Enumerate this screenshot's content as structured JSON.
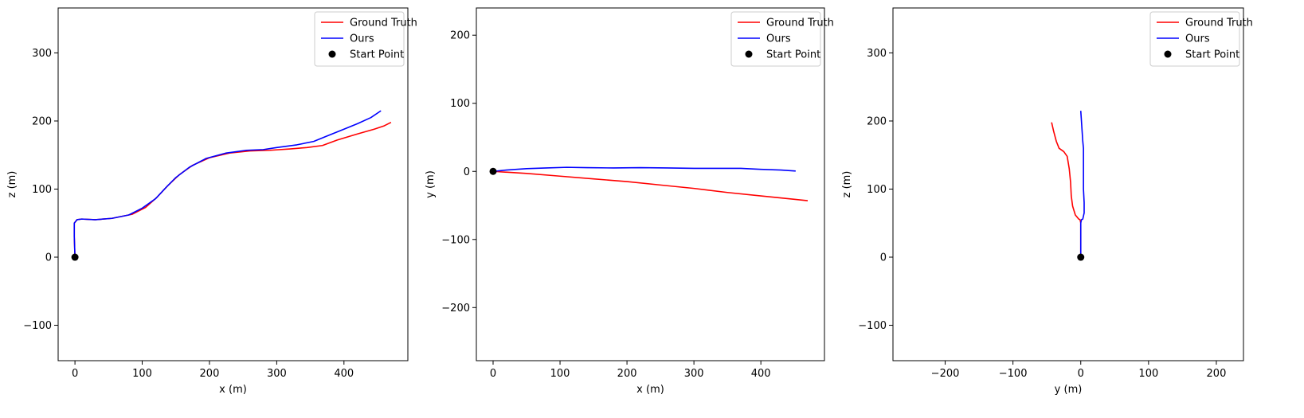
{
  "chart_data": [
    {
      "type": "line",
      "title": "",
      "xlabel": "x (m)",
      "ylabel": "z (m)",
      "xlim": [
        -25,
        495
      ],
      "ylim": [
        -152,
        366
      ],
      "xticks": [
        0,
        100,
        200,
        300,
        400
      ],
      "yticks": [
        -100,
        0,
        100,
        200,
        300
      ],
      "grid": false,
      "legend_position": "top-right",
      "series": [
        {
          "name": "Ground Truth",
          "color": "#ff0000",
          "points": [
            [
              0,
              0
            ],
            [
              -1,
              30
            ],
            [
              -1,
              50
            ],
            [
              3,
              55
            ],
            [
              10,
              56
            ],
            [
              30,
              55
            ],
            [
              55,
              57
            ],
            [
              85,
              63
            ],
            [
              105,
              73
            ],
            [
              122,
              88
            ],
            [
              138,
              105
            ],
            [
              155,
              121
            ],
            [
              175,
              135
            ],
            [
              200,
              146
            ],
            [
              230,
              153
            ],
            [
              260,
              156
            ],
            [
              290,
              157
            ],
            [
              320,
              159
            ],
            [
              345,
              161
            ],
            [
              368,
              164
            ],
            [
              390,
              172
            ],
            [
              420,
              181
            ],
            [
              445,
              188
            ],
            [
              460,
              193
            ],
            [
              470,
              198
            ]
          ]
        },
        {
          "name": "Ours",
          "color": "#0000ff",
          "points": [
            [
              0,
              0
            ],
            [
              -1,
              30
            ],
            [
              -1,
              50
            ],
            [
              3,
              55
            ],
            [
              10,
              56
            ],
            [
              30,
              55
            ],
            [
              55,
              57
            ],
            [
              80,
              62
            ],
            [
              100,
              72
            ],
            [
              120,
              86
            ],
            [
              135,
              102
            ],
            [
              150,
              117
            ],
            [
              170,
              132
            ],
            [
              195,
              145
            ],
            [
              225,
              153
            ],
            [
              255,
              157
            ],
            [
              280,
              158
            ],
            [
              300,
              161
            ],
            [
              330,
              165
            ],
            [
              355,
              170
            ],
            [
              375,
              178
            ],
            [
              400,
              188
            ],
            [
              420,
              196
            ],
            [
              440,
              205
            ],
            [
              455,
              215
            ]
          ]
        }
      ],
      "start_point": {
        "name": "Start Point",
        "color": "#000000",
        "x": 0,
        "y": 0
      }
    },
    {
      "type": "line",
      "title": "",
      "xlabel": "x (m)",
      "ylabel": "y (m)",
      "xlim": [
        -25,
        495
      ],
      "ylim": [
        -278,
        240
      ],
      "xticks": [
        0,
        100,
        200,
        300,
        400
      ],
      "yticks": [
        -200,
        -100,
        0,
        100,
        200
      ],
      "grid": false,
      "legend_position": "top-right",
      "series": [
        {
          "name": "Ground Truth",
          "color": "#ff0000",
          "points": [
            [
              0,
              0
            ],
            [
              50,
              -3
            ],
            [
              100,
              -7
            ],
            [
              150,
              -11
            ],
            [
              200,
              -15
            ],
            [
              250,
              -20
            ],
            [
              300,
              -25
            ],
            [
              350,
              -31
            ],
            [
              400,
              -36
            ],
            [
              450,
              -41
            ],
            [
              470,
              -43
            ]
          ]
        },
        {
          "name": "Ours",
          "color": "#0000ff",
          "points": [
            [
              0,
              0
            ],
            [
              20,
              2
            ],
            [
              50,
              4
            ],
            [
              80,
              5
            ],
            [
              110,
              6
            ],
            [
              140,
              5.5
            ],
            [
              180,
              5
            ],
            [
              220,
              5.5
            ],
            [
              260,
              5
            ],
            [
              300,
              4.5
            ],
            [
              340,
              4.5
            ],
            [
              370,
              4.5
            ],
            [
              400,
              3
            ],
            [
              430,
              2
            ],
            [
              452,
              0.5
            ]
          ]
        }
      ],
      "start_point": {
        "name": "Start Point",
        "color": "#000000",
        "x": 0,
        "y": 0
      }
    },
    {
      "type": "line",
      "title": "",
      "xlabel": "y (m)",
      "ylabel": "z (m)",
      "xlim": [
        -277,
        240
      ],
      "ylim": [
        -152,
        366
      ],
      "xticks": [
        -200,
        -100,
        0,
        100,
        200
      ],
      "yticks": [
        -100,
        0,
        100,
        200,
        300
      ],
      "grid": false,
      "legend_position": "top-right",
      "series": [
        {
          "name": "Ground Truth",
          "color": "#ff0000",
          "points": [
            [
              0,
              0
            ],
            [
              0,
              25
            ],
            [
              0,
              50
            ],
            [
              -1,
              55
            ],
            [
              -3,
              56
            ],
            [
              -8,
              62
            ],
            [
              -12,
              75
            ],
            [
              -14,
              90
            ],
            [
              -15,
              110
            ],
            [
              -17,
              130
            ],
            [
              -20,
              148
            ],
            [
              -25,
              155
            ],
            [
              -32,
              160
            ],
            [
              -36,
              170
            ],
            [
              -40,
              185
            ],
            [
              -43,
              198
            ]
          ]
        },
        {
          "name": "Ours",
          "color": "#0000ff",
          "points": [
            [
              0,
              0
            ],
            [
              0,
              25
            ],
            [
              0,
              50
            ],
            [
              1,
              55
            ],
            [
              3,
              56
            ],
            [
              5,
              65
            ],
            [
              5,
              80
            ],
            [
              4,
              100
            ],
            [
              4,
              130
            ],
            [
              4,
              150
            ],
            [
              4,
              160
            ],
            [
              3,
              170
            ],
            [
              2,
              185
            ],
            [
              1,
              200
            ],
            [
              0,
              215
            ]
          ]
        }
      ],
      "start_point": {
        "name": "Start Point",
        "color": "#000000",
        "x": 0,
        "y": 0
      }
    }
  ]
}
